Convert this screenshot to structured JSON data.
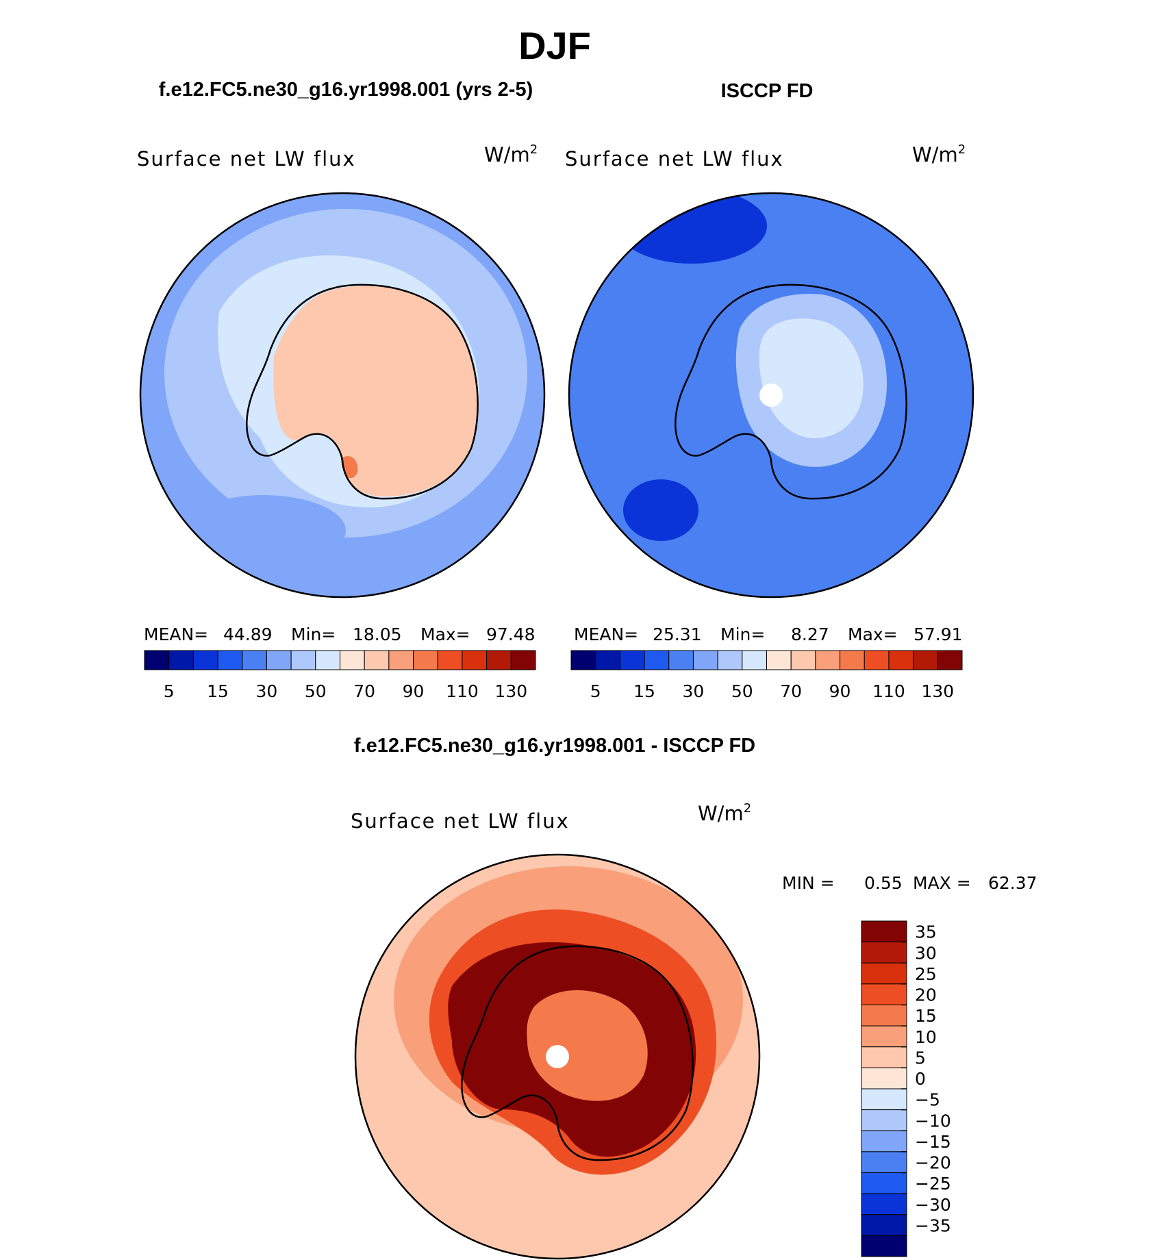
{
  "figure": {
    "title": "DJF",
    "units_base": "W/m",
    "units_exp": "2"
  },
  "colors": {
    "panel_palette": [
      "#000070",
      "#0018a8",
      "#0a34d8",
      "#1e5aef",
      "#4a80f2",
      "#7fa6f8",
      "#aec8fb",
      "#d6e8fd",
      "#fde6d6",
      "#fdc8ad",
      "#f9a07a",
      "#f47a4c",
      "#ee4e23",
      "#d9300d",
      "#b21a07",
      "#830404"
    ],
    "diff_palette": [
      "#000070",
      "#0018a8",
      "#0a34d8",
      "#1e5aef",
      "#4a80f2",
      "#7fa6f8",
      "#aec8fb",
      "#d6e8fd",
      "#fde6d6",
      "#fdc8ad",
      "#f9a07a",
      "#f47a4c",
      "#ee4e23",
      "#d9300d",
      "#b21a07",
      "#830404"
    ],
    "pole_mask": "#ffffff",
    "coastline": "#000000"
  },
  "chart_data": [
    {
      "type": "heatmap",
      "title": "f.e12.FC5.ne30_g16.yr1998.001 (yrs 2-5)",
      "variable": "Surface net LW flux",
      "projection": "south polar stereographic",
      "stats": {
        "mean_label": "MEAN=",
        "mean": "44.89",
        "min_label": "Min=",
        "min": "18.05",
        "max_label": "Max=",
        "max": "97.48"
      },
      "levels": [
        5,
        10,
        15,
        20,
        30,
        40,
        50,
        60,
        70,
        80,
        90,
        100,
        110,
        120,
        130
      ],
      "tick_labels": [
        "5",
        "15",
        "30",
        "50",
        "70",
        "90",
        "110",
        "130"
      ],
      "field": {
        "ocean_far": 35,
        "ocean_mid": 42,
        "ice_edge": 55,
        "antarctica": 72,
        "coast_max": 97
      }
    },
    {
      "type": "heatmap",
      "title": "ISCCP FD",
      "variable": "Surface net LW flux",
      "projection": "south polar stereographic",
      "stats": {
        "mean_label": "MEAN=",
        "mean": "25.31",
        "min_label": "Min=",
        "min": "8.27",
        "max_label": "Max=",
        "max": "57.91"
      },
      "levels": [
        5,
        10,
        15,
        20,
        30,
        40,
        50,
        60,
        70,
        80,
        90,
        100,
        110,
        120,
        130
      ],
      "tick_labels": [
        "5",
        "15",
        "30",
        "50",
        "70",
        "90",
        "110",
        "130"
      ],
      "field": {
        "ocean_far": 22,
        "ocean_min": 14,
        "coast": 28,
        "plateau_edge": 45,
        "plateau": 55
      }
    },
    {
      "type": "heatmap",
      "title": "f.e12.FC5.ne30_g16.yr1998.001 - ISCCP FD",
      "variable": "Surface net LW flux",
      "projection": "south polar stereographic",
      "stats": {
        "min_label": "MIN =",
        "min": "0.55",
        "max_label": "MAX =",
        "max": "62.37"
      },
      "levels": [
        -35,
        -30,
        -25,
        -20,
        -15,
        -10,
        -5,
        0,
        5,
        10,
        15,
        20,
        25,
        30,
        35
      ],
      "tick_labels": [
        "35",
        "30",
        "25",
        "20",
        "15",
        "10",
        "5",
        "0",
        "−5",
        "−10",
        "−15",
        "−20",
        "−25",
        "−30",
        "−35"
      ],
      "field": {
        "ocean_far": 5,
        "ocean_mid": 12,
        "ice_edge": 22,
        "coast": 36,
        "plateau": 18
      }
    }
  ]
}
